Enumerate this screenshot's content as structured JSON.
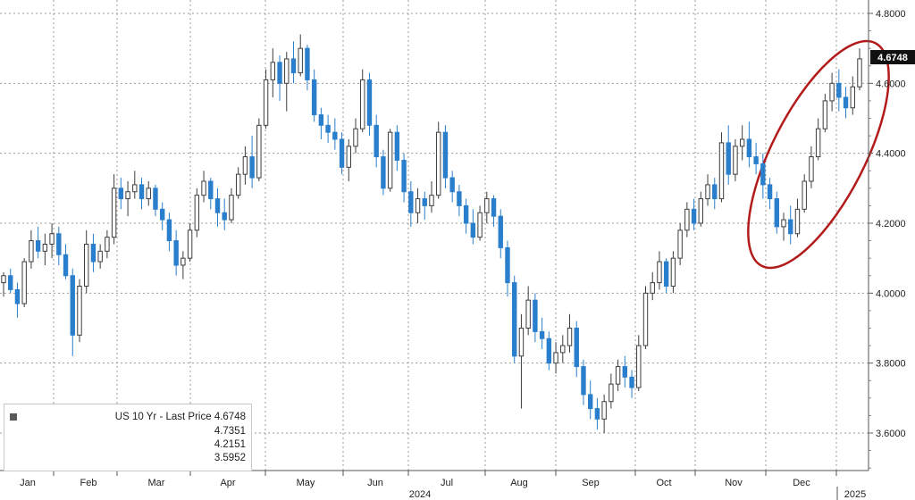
{
  "chart_data": {
    "type": "candlestick",
    "legend": {
      "title": "US 10 Yr - Last Price",
      "last": "4.6748",
      "high": "4.7351",
      "average": "4.2151",
      "low": "3.5952"
    },
    "last_price_label": "4.6748",
    "y_ticks": [
      "4.8000",
      "4.6000",
      "4.4000",
      "4.2000",
      "4.0000",
      "3.8000",
      "3.6000"
    ],
    "ylim": [
      3.5,
      4.85
    ],
    "months": [
      "Jan",
      "Feb",
      "Mar",
      "Apr",
      "May",
      "Jun",
      "Jul",
      "Aug",
      "Sep",
      "Oct",
      "Nov",
      "Dec"
    ],
    "year_labels": [
      "2024",
      "2025"
    ],
    "colors": {
      "up": "#3d3d3d",
      "down": "#2a7fcc",
      "highlight": "#b31b1b"
    },
    "ohlc": [
      [
        0,
        4.03,
        4.06,
        3.99,
        4.05
      ],
      [
        1,
        4.05,
        4.07,
        4.0,
        4.01
      ],
      [
        2,
        4.01,
        4.03,
        3.93,
        3.97
      ],
      [
        3,
        3.97,
        4.1,
        3.96,
        4.09
      ],
      [
        4,
        4.09,
        4.18,
        4.07,
        4.15
      ],
      [
        5,
        4.15,
        4.19,
        4.1,
        4.12
      ],
      [
        6,
        4.12,
        4.17,
        4.08,
        4.14
      ],
      [
        7,
        4.14,
        4.2,
        4.1,
        4.17
      ],
      [
        8,
        4.17,
        4.19,
        4.08,
        4.11
      ],
      [
        9,
        4.11,
        4.14,
        4.04,
        4.05
      ],
      [
        10,
        4.05,
        4.07,
        3.82,
        3.88
      ],
      [
        11,
        3.88,
        4.04,
        3.86,
        4.02
      ],
      [
        12,
        4.02,
        4.18,
        4.0,
        4.14
      ],
      [
        13,
        4.14,
        4.17,
        4.06,
        4.09
      ],
      [
        14,
        4.09,
        4.14,
        4.07,
        4.12
      ],
      [
        15,
        4.12,
        4.18,
        4.1,
        4.16
      ],
      [
        16,
        4.16,
        4.34,
        4.14,
        4.3
      ],
      [
        17,
        4.3,
        4.33,
        4.24,
        4.27
      ],
      [
        18,
        4.27,
        4.32,
        4.22,
        4.29
      ],
      [
        19,
        4.29,
        4.35,
        4.27,
        4.31
      ],
      [
        20,
        4.31,
        4.33,
        4.24,
        4.27
      ],
      [
        21,
        4.27,
        4.32,
        4.25,
        4.3
      ],
      [
        22,
        4.3,
        4.31,
        4.22,
        4.24
      ],
      [
        23,
        4.24,
        4.26,
        4.18,
        4.21
      ],
      [
        24,
        4.21,
        4.23,
        4.12,
        4.15
      ],
      [
        25,
        4.15,
        4.18,
        4.05,
        4.08
      ],
      [
        26,
        4.08,
        4.12,
        4.04,
        4.1
      ],
      [
        27,
        4.1,
        4.2,
        4.09,
        4.18
      ],
      [
        28,
        4.18,
        4.3,
        4.16,
        4.28
      ],
      [
        29,
        4.28,
        4.35,
        4.26,
        4.32
      ],
      [
        30,
        4.32,
        4.33,
        4.24,
        4.27
      ],
      [
        31,
        4.27,
        4.3,
        4.19,
        4.23
      ],
      [
        32,
        4.23,
        4.27,
        4.18,
        4.21
      ],
      [
        33,
        4.21,
        4.3,
        4.2,
        4.28
      ],
      [
        34,
        4.28,
        4.36,
        4.27,
        4.34
      ],
      [
        35,
        4.34,
        4.42,
        4.31,
        4.39
      ],
      [
        36,
        4.39,
        4.45,
        4.3,
        4.33
      ],
      [
        37,
        4.33,
        4.5,
        4.32,
        4.48
      ],
      [
        38,
        4.48,
        4.64,
        4.47,
        4.61
      ],
      [
        39,
        4.61,
        4.7,
        4.56,
        4.66
      ],
      [
        40,
        4.66,
        4.68,
        4.55,
        4.6
      ],
      [
        41,
        4.6,
        4.69,
        4.52,
        4.67
      ],
      [
        42,
        4.67,
        4.72,
        4.6,
        4.63
      ],
      [
        43,
        4.63,
        4.74,
        4.62,
        4.7
      ],
      [
        44,
        4.7,
        4.71,
        4.58,
        4.61
      ],
      [
        45,
        4.61,
        4.64,
        4.49,
        4.51
      ],
      [
        46,
        4.51,
        4.53,
        4.44,
        4.48
      ],
      [
        47,
        4.48,
        4.51,
        4.43,
        4.46
      ],
      [
        48,
        4.46,
        4.5,
        4.41,
        4.44
      ],
      [
        49,
        4.44,
        4.46,
        4.34,
        4.36
      ],
      [
        50,
        4.36,
        4.44,
        4.32,
        4.42
      ],
      [
        51,
        4.42,
        4.5,
        4.4,
        4.47
      ],
      [
        52,
        4.47,
        4.64,
        4.46,
        4.61
      ],
      [
        53,
        4.61,
        4.63,
        4.45,
        4.48
      ],
      [
        54,
        4.48,
        4.51,
        4.36,
        4.39
      ],
      [
        55,
        4.39,
        4.41,
        4.28,
        4.3
      ],
      [
        56,
        4.3,
        4.47,
        4.29,
        4.46
      ],
      [
        57,
        4.46,
        4.48,
        4.35,
        4.38
      ],
      [
        58,
        4.38,
        4.4,
        4.26,
        4.29
      ],
      [
        59,
        4.29,
        4.32,
        4.19,
        4.23
      ],
      [
        60,
        4.23,
        4.3,
        4.2,
        4.27
      ],
      [
        61,
        4.27,
        4.29,
        4.21,
        4.25
      ],
      [
        62,
        4.25,
        4.32,
        4.23,
        4.28
      ],
      [
        63,
        4.28,
        4.49,
        4.27,
        4.46
      ],
      [
        64,
        4.46,
        4.48,
        4.3,
        4.33
      ],
      [
        65,
        4.33,
        4.35,
        4.26,
        4.29
      ],
      [
        66,
        4.29,
        4.31,
        4.22,
        4.25
      ],
      [
        67,
        4.25,
        4.27,
        4.17,
        4.2
      ],
      [
        68,
        4.2,
        4.24,
        4.14,
        4.16
      ],
      [
        69,
        4.16,
        4.25,
        4.15,
        4.23
      ],
      [
        70,
        4.23,
        4.29,
        4.2,
        4.27
      ],
      [
        71,
        4.27,
        4.28,
        4.19,
        4.22
      ],
      [
        72,
        4.22,
        4.24,
        4.1,
        4.13
      ],
      [
        73,
        4.13,
        4.15,
        3.99,
        4.03
      ],
      [
        74,
        4.03,
        4.05,
        3.8,
        3.82
      ],
      [
        75,
        3.82,
        3.94,
        3.67,
        3.9
      ],
      [
        76,
        3.9,
        4.02,
        3.88,
        3.98
      ],
      [
        77,
        3.98,
        4.0,
        3.86,
        3.89
      ],
      [
        78,
        3.89,
        3.93,
        3.84,
        3.87
      ],
      [
        79,
        3.87,
        3.89,
        3.78,
        3.8
      ],
      [
        80,
        3.8,
        3.86,
        3.77,
        3.83
      ],
      [
        81,
        3.83,
        3.88,
        3.8,
        3.85
      ],
      [
        82,
        3.85,
        3.94,
        3.83,
        3.9
      ],
      [
        83,
        3.9,
        3.92,
        3.76,
        3.79
      ],
      [
        84,
        3.79,
        3.81,
        3.68,
        3.71
      ],
      [
        85,
        3.71,
        3.75,
        3.64,
        3.67
      ],
      [
        86,
        3.67,
        3.7,
        3.61,
        3.64
      ],
      [
        87,
        3.64,
        3.71,
        3.6,
        3.69
      ],
      [
        88,
        3.69,
        3.77,
        3.67,
        3.74
      ],
      [
        89,
        3.74,
        3.81,
        3.72,
        3.79
      ],
      [
        90,
        3.79,
        3.82,
        3.73,
        3.76
      ],
      [
        91,
        3.76,
        3.78,
        3.7,
        3.73
      ],
      [
        92,
        3.73,
        3.88,
        3.72,
        3.85
      ],
      [
        93,
        3.85,
        4.02,
        3.84,
        4.0
      ],
      [
        94,
        4.0,
        4.06,
        3.98,
        4.03
      ],
      [
        95,
        4.03,
        4.12,
        4.01,
        4.09
      ],
      [
        96,
        4.09,
        4.1,
        4.0,
        4.02
      ],
      [
        97,
        4.02,
        4.12,
        4.0,
        4.1
      ],
      [
        98,
        4.1,
        4.2,
        4.08,
        4.18
      ],
      [
        99,
        4.18,
        4.26,
        4.16,
        4.24
      ],
      [
        100,
        4.24,
        4.27,
        4.18,
        4.2
      ],
      [
        101,
        4.2,
        4.29,
        4.19,
        4.27
      ],
      [
        102,
        4.27,
        4.34,
        4.25,
        4.31
      ],
      [
        103,
        4.31,
        4.33,
        4.24,
        4.27
      ],
      [
        104,
        4.27,
        4.46,
        4.26,
        4.43
      ],
      [
        105,
        4.43,
        4.48,
        4.31,
        4.34
      ],
      [
        106,
        4.34,
        4.44,
        4.32,
        4.42
      ],
      [
        107,
        4.42,
        4.48,
        4.38,
        4.44
      ],
      [
        108,
        4.44,
        4.49,
        4.36,
        4.39
      ],
      [
        109,
        4.39,
        4.43,
        4.34,
        4.37
      ],
      [
        110,
        4.37,
        4.4,
        4.27,
        4.31
      ],
      [
        111,
        4.31,
        4.33,
        4.24,
        4.27
      ],
      [
        112,
        4.27,
        4.29,
        4.17,
        4.19
      ],
      [
        113,
        4.19,
        4.23,
        4.15,
        4.21
      ],
      [
        114,
        4.21,
        4.25,
        4.14,
        4.17
      ],
      [
        115,
        4.17,
        4.27,
        4.16,
        4.24
      ],
      [
        116,
        4.24,
        4.34,
        4.23,
        4.32
      ],
      [
        117,
        4.32,
        4.42,
        4.3,
        4.39
      ],
      [
        118,
        4.39,
        4.5,
        4.38,
        4.47
      ],
      [
        119,
        4.47,
        4.57,
        4.46,
        4.55
      ],
      [
        120,
        4.55,
        4.63,
        4.52,
        4.6
      ],
      [
        121,
        4.6,
        4.64,
        4.52,
        4.56
      ],
      [
        122,
        4.56,
        4.59,
        4.5,
        4.53
      ],
      [
        123,
        4.53,
        4.62,
        4.51,
        4.59
      ],
      [
        124,
        4.59,
        4.7,
        4.58,
        4.67
      ]
    ]
  }
}
